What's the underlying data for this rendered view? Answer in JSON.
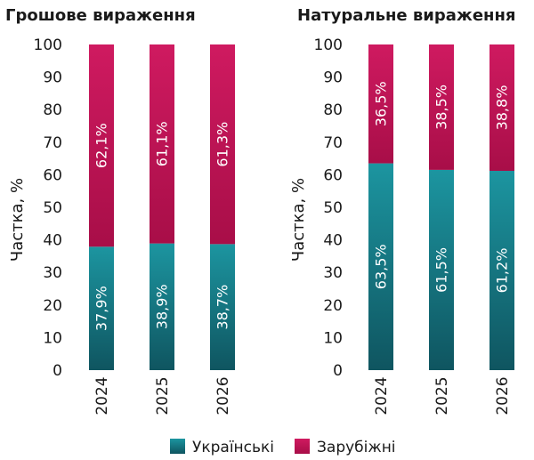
{
  "chart_data": [
    {
      "type": "bar",
      "stacked": true,
      "title": "Грошове вираження",
      "ylabel": "Частка, %",
      "ylim": [
        0,
        100
      ],
      "yticks": [
        0,
        10,
        20,
        30,
        40,
        50,
        60,
        70,
        80,
        90,
        100
      ],
      "categories": [
        "2024",
        "2025",
        "2026"
      ],
      "series": [
        {
          "name": "Українські",
          "color": "#1a8a96",
          "values": [
            37.9,
            38.9,
            38.7
          ],
          "labels": [
            "37,9%",
            "38,9%",
            "38,7%"
          ]
        },
        {
          "name": "Зарубіжні",
          "color": "#c8165a",
          "values": [
            62.1,
            61.1,
            61.3
          ],
          "labels": [
            "62,1%",
            "61,1%",
            "61,3%"
          ]
        }
      ]
    },
    {
      "type": "bar",
      "stacked": true,
      "title": "Натуральне вираження",
      "ylabel": "Частка, %",
      "ylim": [
        0,
        100
      ],
      "yticks": [
        0,
        10,
        20,
        30,
        40,
        50,
        60,
        70,
        80,
        90,
        100
      ],
      "categories": [
        "2024",
        "2025",
        "2026"
      ],
      "series": [
        {
          "name": "Українські",
          "color": "#1a8a96",
          "values": [
            63.5,
            61.5,
            61.2
          ],
          "labels": [
            "63,5%",
            "61,5%",
            "61,2%"
          ]
        },
        {
          "name": "Зарубіжні",
          "color": "#c8165a",
          "values": [
            36.5,
            38.5,
            38.8
          ],
          "labels": [
            "36,5%",
            "38,5%",
            "38,8%"
          ]
        }
      ]
    }
  ],
  "legend": {
    "placement": "bottom",
    "items": [
      {
        "label": "Українські",
        "color": "#1a8a96"
      },
      {
        "label": "Зарубіжні",
        "color": "#c8165a"
      }
    ]
  }
}
